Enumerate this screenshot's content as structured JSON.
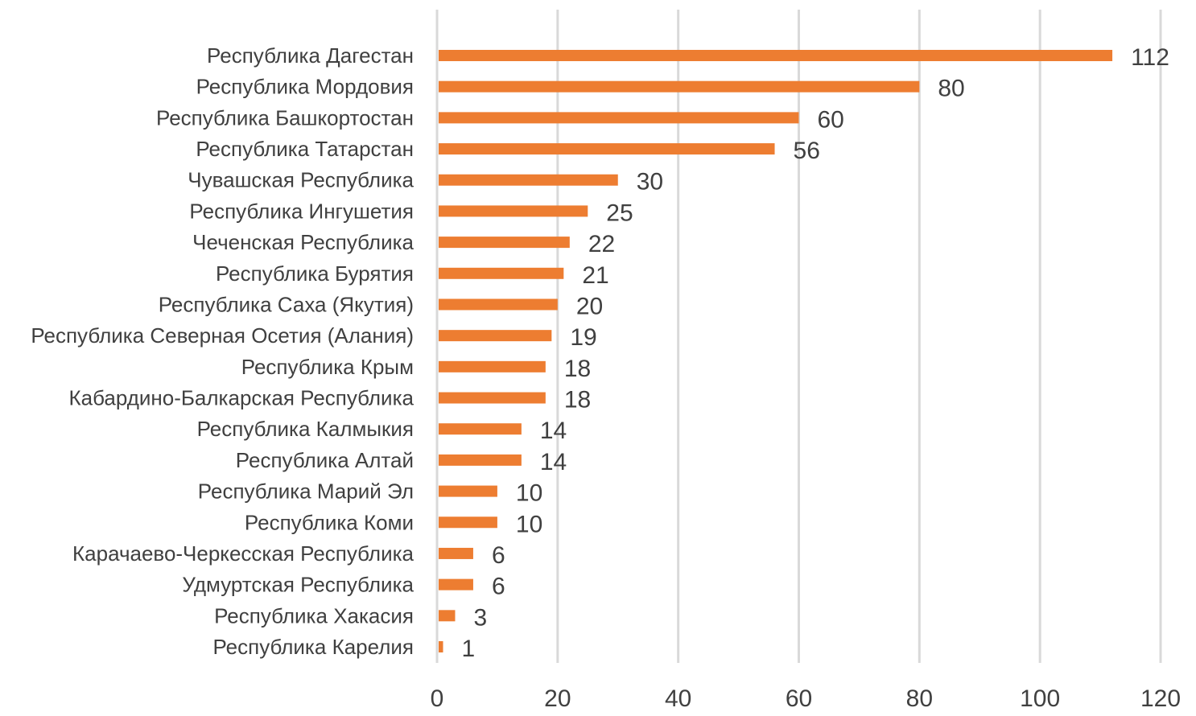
{
  "chart_data": {
    "type": "bar",
    "orientation": "horizontal",
    "title": "",
    "xlabel": "",
    "ylabel": "",
    "xlim": [
      0,
      120
    ],
    "xticks": [
      0,
      20,
      40,
      60,
      80,
      100,
      120
    ],
    "grid": true,
    "bar_color": "#ED7D31",
    "grid_color": "#D9D9D9",
    "categories": [
      "Республика Дагестан",
      "Республика Мордовия",
      "Республика Башкортостан",
      "Республика Татарстан",
      "Чувашская Республика",
      "Республика Ингушетия",
      "Чеченская Республика",
      "Республика Бурятия",
      "Республика Саха (Якутия)",
      "Республика Северная Осетия (Алания)",
      "Республика Крым",
      "Кабардино-Балкарская Республика",
      "Республика Калмыкия",
      "Республика Алтай",
      "Республика Марий Эл",
      "Республика Коми",
      "Карачаево-Черкесская Республика",
      "Удмуртская Республика",
      "Республика Хакасия",
      "Республика Карелия"
    ],
    "values": [
      112,
      80,
      60,
      56,
      30,
      25,
      22,
      21,
      20,
      19,
      18,
      18,
      14,
      14,
      10,
      10,
      6,
      6,
      3,
      1
    ]
  }
}
